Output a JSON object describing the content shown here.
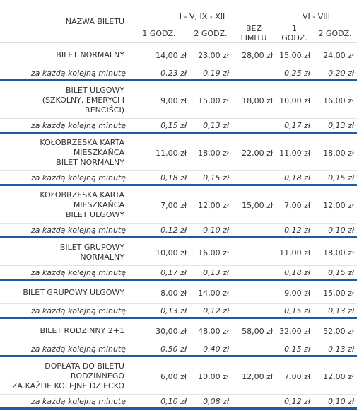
{
  "header": {
    "name": "NAZWA BILETU",
    "season1": "I - V, IX - XII",
    "season2": "VI - VIII",
    "columns": [
      "1 GODZ.",
      "2 GODZ.",
      "BEZ LIMITU",
      "1 GODZ.",
      "2 GODZ."
    ]
  },
  "rows": [
    {
      "name": [
        "BILET NORMALNY"
      ],
      "prices": [
        "14,00 zł",
        "23,00 zł",
        "28,00 zł",
        "15,00 zł",
        "24,00 zł"
      ],
      "minute_label": "za każdą kolejną minutę",
      "minute": [
        "0,23 zł",
        "0,19 zł",
        null,
        "0,25 zł",
        "0,20 zł"
      ]
    },
    {
      "name": [
        "BILET ULGOWY",
        "(SZKOLNY, EMERYCI I",
        "RENCIŚCI)"
      ],
      "prices": [
        "9,00 zł",
        "15,00 zł",
        "18,00 zł",
        "10,00 zł",
        "16,00 zł"
      ],
      "minute_label": "za każdą kolejną minutę",
      "minute": [
        "0,15 zł",
        "0,13 zł",
        null,
        "0,17 zł",
        "0,13 zł"
      ]
    },
    {
      "name": [
        "KOŁOBRZESKA KARTA",
        "MIESZKAŃCA",
        "BILET NORMALNY"
      ],
      "prices": [
        "11,00 zł",
        "18,00 zł",
        "22,00 zł",
        "11,00 zł",
        "18,00 zł"
      ],
      "minute_label": "za każdą kolejną minutę",
      "minute": [
        "0,18 zł",
        "0,15 zł",
        null,
        "0,18 zł",
        "0,15 zł"
      ]
    },
    {
      "name": [
        "KOŁOBRZESKA KARTA",
        "MIESZKAŃCA",
        "BILET ULGOWY"
      ],
      "prices": [
        "7,00 zł",
        "12,00 zł",
        "15,00 zł",
        "7,00 zł",
        "12,00 zł"
      ],
      "minute_label": "za każdą kolejną minutę",
      "minute": [
        "0,12 zł",
        "0,10 zł",
        null,
        "0,12 zł",
        "0,10 zł"
      ]
    },
    {
      "name": [
        "BILET GRUPOWY",
        "NORMALNY"
      ],
      "prices": [
        "10,00 zł",
        "16,00 zł",
        null,
        "11,00 zł",
        "18,00 zł"
      ],
      "minute_label": "za każdą kolejną minutę",
      "minute": [
        "0,17 zł",
        "0,13 zł",
        null,
        "0,18 zł",
        "0,15 zł"
      ]
    },
    {
      "name": [
        "BILET GRUPOWY ULGOWY"
      ],
      "prices": [
        "8,00 zł",
        "14,00 zł",
        null,
        "9,00 zł",
        "15,00 zł"
      ],
      "minute_label": "za każdą kolejną minutę",
      "minute": [
        "0,13 zł",
        "0,12 zł",
        null,
        "0,15 zł",
        "0,13 zł"
      ]
    },
    {
      "name": [
        "BILET RODZINNY 2+1"
      ],
      "prices": [
        "30,00 zł",
        "48,00 zł",
        "58,00 zł",
        "32,00 zł",
        "52,00 zł"
      ],
      "minute_label": "za każdą kolejną minutę",
      "minute": [
        "0,50 zł",
        "0,40 zł",
        null,
        "0,15 zł",
        "0,13 zł"
      ]
    },
    {
      "name": [
        "DOPŁATA DO BILETU",
        "RODZINNEGO",
        "ZA KAŻDE KOLEJNE DZIECKO"
      ],
      "prices": [
        "6,00 zł",
        "10,00 zł",
        "12,00 zł",
        "7,00 zł",
        "12,00 zł"
      ],
      "minute_label": "za każdą kolejną minutę",
      "minute": [
        "0,10 zł",
        "0,08 zł",
        null,
        "0,12 zł",
        "0,10 zł"
      ]
    }
  ]
}
